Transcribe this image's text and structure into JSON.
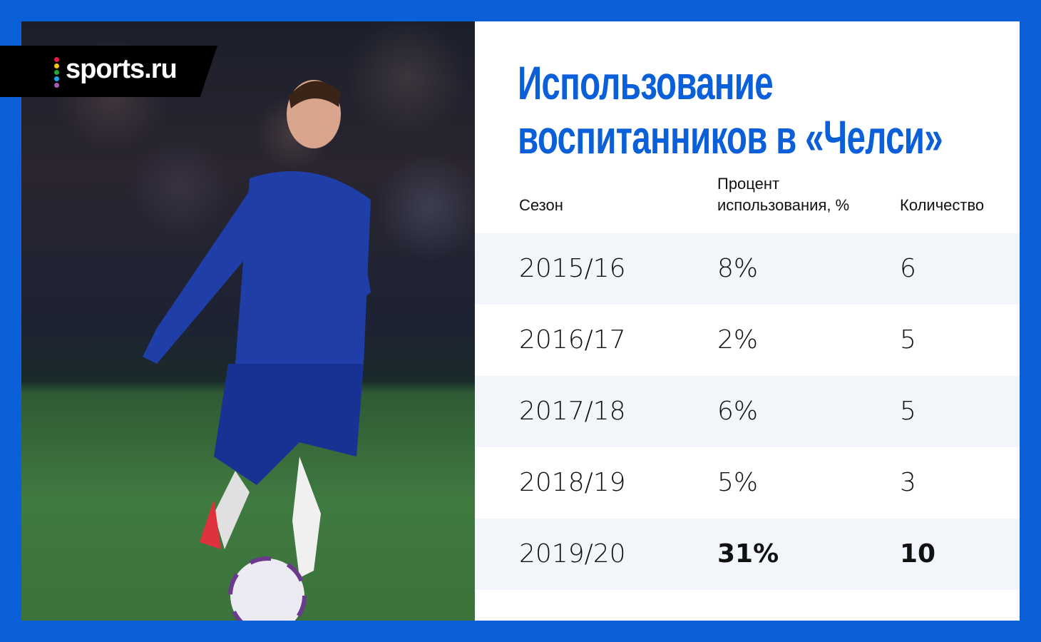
{
  "brand": {
    "logo_text": "sports.ru",
    "dot_colors": [
      "#e5194b",
      "#f6c516",
      "#1ea83c",
      "#1aa6e8",
      "#a05fb7"
    ]
  },
  "colors": {
    "frame": "#0b5fd8",
    "title": "#0b5fd8",
    "row_shade": "#f2f6fa"
  },
  "title": {
    "line1": "Использование",
    "line2": "воспитанников в «Челси»"
  },
  "chart_data": {
    "type": "table",
    "columns": [
      "Сезон",
      "Процент использования, %",
      "Количество"
    ],
    "header_lines": {
      "col2_line1": "Процент",
      "col2_line2": "использования, %"
    },
    "rows": [
      {
        "season": "2015/16",
        "percent": "8%",
        "count": "6"
      },
      {
        "season": "2016/17",
        "percent": "2%",
        "count": "5"
      },
      {
        "season": "2017/18",
        "percent": "6%",
        "count": "5"
      },
      {
        "season": "2018/19",
        "percent": "5%",
        "count": "3"
      },
      {
        "season": "2019/20",
        "percent": "31%",
        "count": "10",
        "highlight": true
      }
    ]
  }
}
